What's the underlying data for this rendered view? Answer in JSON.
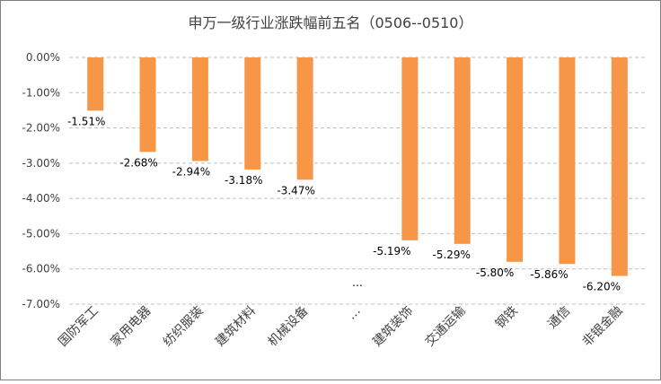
{
  "chart_data": {
    "type": "bar",
    "title": "申万一级行业涨跌幅前五名（0506--0510）",
    "categories": [
      "国防军工",
      "家用电器",
      "纺织服装",
      "建筑材料",
      "机械设备",
      "…",
      "建筑装饰",
      "交通运输",
      "钢铁",
      "通信",
      "非银金融"
    ],
    "values": [
      -1.51,
      -2.68,
      -2.94,
      -3.18,
      -3.47,
      null,
      -5.19,
      -5.29,
      -5.8,
      -5.86,
      -6.2
    ],
    "data_labels": [
      "-1.51%",
      "-2.68%",
      "-2.94%",
      "-3.18%",
      "-3.47%",
      "…",
      "-5.19%",
      "-5.29%",
      "-5.80%",
      "-5.86%",
      "-6.20%"
    ],
    "ylim": [
      -7,
      0
    ],
    "y_ticks": [
      "0.00%",
      "-1.00%",
      "-2.00%",
      "-3.00%",
      "-4.00%",
      "-5.00%",
      "-6.00%",
      "-7.00%"
    ],
    "grid": true,
    "bar_color": "#F79646",
    "xlabel": "",
    "ylabel": ""
  }
}
